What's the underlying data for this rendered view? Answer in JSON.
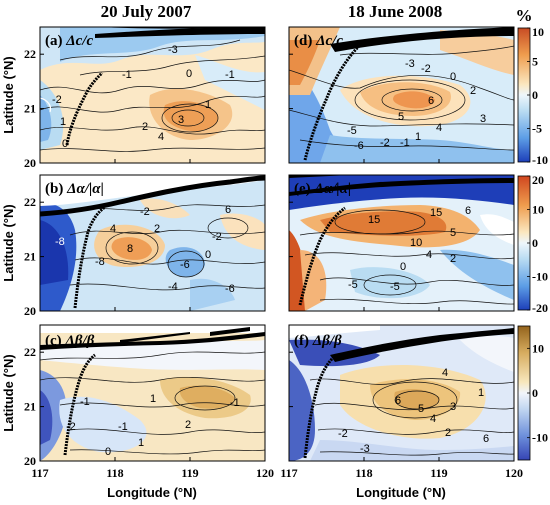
{
  "column_titles": [
    "20 July 2007",
    "18 June 2008"
  ],
  "unit_label": "%",
  "chart_data": [
    {
      "type": "heatmap",
      "panel": "(a)",
      "symbol": "Δc/c",
      "date": "20 July 2007",
      "xlim": [
        117,
        120
      ],
      "ylim": [
        20,
        22.5
      ],
      "colorscale": "blue-white-orange",
      "clim": [
        -10,
        10
      ],
      "contour_labels": [
        "-2",
        "-1",
        "-3",
        "0",
        "1",
        "2",
        "3",
        "4",
        "-1",
        "0",
        "1"
      ]
    },
    {
      "type": "heatmap",
      "panel": "(d)",
      "symbol": "Δc/c",
      "date": "18 June 2008",
      "xlim": [
        117,
        120
      ],
      "ylim": [
        20,
        22.5
      ],
      "colorscale": "blue-white-orange",
      "clim": [
        -10,
        10
      ],
      "contour_labels": [
        "-3",
        "-2",
        "0",
        "2",
        "6",
        "5",
        "4",
        "3",
        "-5",
        "-6",
        "-2",
        "-1",
        "1"
      ]
    },
    {
      "type": "heatmap",
      "panel": "(b)",
      "symbol": "Δα/|α|",
      "date": "20 July 2007",
      "xlim": [
        117,
        120
      ],
      "ylim": [
        20,
        22.5
      ],
      "colorscale": "blue-white-orange",
      "clim": [
        -20,
        20
      ],
      "contour_labels": [
        "-8",
        "4",
        "8",
        "2",
        "0",
        "-2",
        "-6",
        "-8",
        "-4",
        "-6",
        "6",
        "-2"
      ]
    },
    {
      "type": "heatmap",
      "panel": "(e)",
      "symbol": "Δα/|α|",
      "date": "18 June 2008",
      "xlim": [
        117,
        120
      ],
      "ylim": [
        20,
        22.5
      ],
      "colorscale": "blue-white-orange",
      "clim": [
        -20,
        20
      ],
      "contour_labels": [
        "15",
        "15",
        "10",
        "5",
        "6",
        "4",
        "0",
        "-5",
        "-5",
        "2"
      ]
    },
    {
      "type": "heatmap",
      "panel": "(c)",
      "symbol": "Δβ/β",
      "date": "20 July 2007",
      "xlim": [
        117,
        120
      ],
      "ylim": [
        20,
        22.5
      ],
      "colorscale": "blue-white-brown",
      "clim": [
        -15,
        15
      ],
      "contour_labels": [
        "-1",
        "-2",
        "1",
        "2",
        "-1",
        "0",
        "-1",
        "1"
      ]
    },
    {
      "type": "heatmap",
      "panel": "(f)",
      "symbol": "Δβ/β",
      "date": "18 June 2008",
      "xlim": [
        117,
        120
      ],
      "ylim": [
        20,
        22.5
      ],
      "colorscale": "blue-white-brown",
      "clim": [
        -15,
        15
      ],
      "contour_labels": [
        "4",
        "6",
        "5",
        "4",
        "3",
        "2",
        "1",
        "-3",
        "-2",
        "6"
      ]
    }
  ],
  "axes": {
    "xlabel": "Longitude (°N)",
    "ylabel": "Latitude (°N)",
    "xticks": [
      "117",
      "118",
      "119",
      "120"
    ],
    "yticks": [
      "20",
      "21",
      "22"
    ]
  },
  "colorbars": [
    {
      "ticks": [
        "10",
        "5",
        "0",
        "-5",
        "-10"
      ],
      "values": [
        10,
        5,
        0,
        -5,
        -10
      ]
    },
    {
      "ticks": [
        "20",
        "10",
        "0",
        "-10",
        "-20"
      ],
      "values": [
        20,
        10,
        0,
        -10,
        -20
      ]
    },
    {
      "ticks": [
        "10",
        "0",
        "-10"
      ],
      "values": [
        10,
        0,
        -10
      ]
    }
  ]
}
